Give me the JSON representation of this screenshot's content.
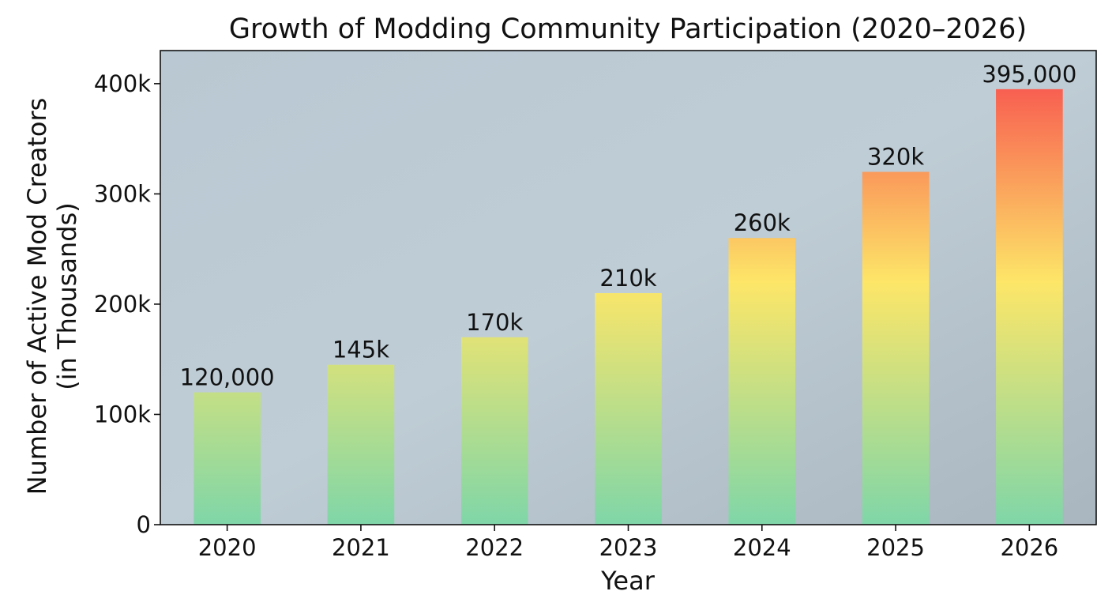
{
  "chart_data": {
    "type": "bar",
    "title": "Growth of Modding Community Participation (2020–2026)",
    "xlabel": "Year",
    "ylabel": "Number of Active Mod Creators\n(in Thousands)",
    "ylabel_lines": [
      "Number of Active Mod Creators",
      "(in Thousands)"
    ],
    "categories": [
      "2020",
      "2021",
      "2022",
      "2023",
      "2024",
      "2025",
      "2026"
    ],
    "values": [
      120000,
      145000,
      170000,
      210000,
      260000,
      320000,
      395000
    ],
    "data_labels": [
      "120,000",
      "145k",
      "170k",
      "210k",
      "260k",
      "320k",
      "395,000"
    ],
    "ylim": [
      0,
      430000
    ],
    "yticks": [
      0,
      100000,
      200000,
      300000,
      400000
    ],
    "ytick_labels": [
      "0",
      "100k",
      "200k",
      "300k",
      "400k"
    ],
    "grid": false,
    "bar_gradient": [
      "#7fd6a8",
      "#fde668",
      "#f85c50"
    ],
    "background": "#b3c1cb"
  }
}
